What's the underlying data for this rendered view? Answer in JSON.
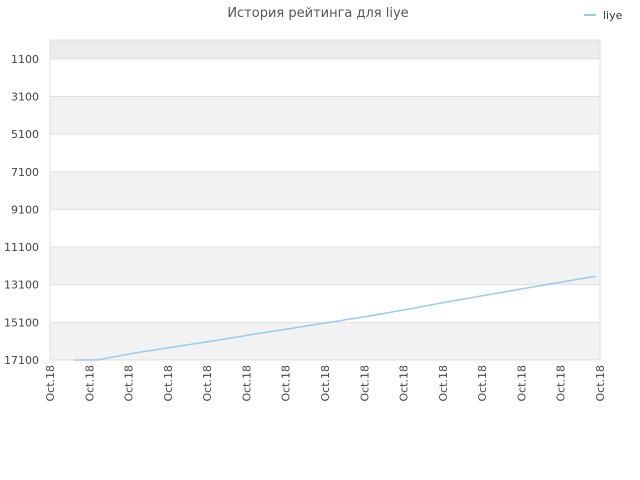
{
  "chart_data": {
    "type": "line",
    "title": "История рейтинга для liye",
    "xlabel": "",
    "ylabel": "",
    "y_reversed": true,
    "ylim": [
      17100,
      100
    ],
    "y_ticks": [
      1100,
      3100,
      5100,
      7100,
      9100,
      11100,
      13100,
      15100,
      17100
    ],
    "x_tick_labels": [
      "Oct.18",
      "Oct.18",
      "Oct.18",
      "Oct.18",
      "Oct.18",
      "Oct.18",
      "Oct.18",
      "Oct.18",
      "Oct.18",
      "Oct.18",
      "Oct.18",
      "Oct.18",
      "Oct.18",
      "Oct.18",
      "Oct.18"
    ],
    "legend": {
      "position": "top-right",
      "entries": [
        "liye"
      ]
    },
    "grid": true,
    "series": [
      {
        "name": "liye",
        "color": "#9ecae9",
        "points": [
          {
            "x": 0.6,
            "y": 17100
          },
          {
            "x": 1.2,
            "y": 17100
          },
          {
            "x": 2.1,
            "y": 16750
          },
          {
            "x": 3.1,
            "y": 16420
          },
          {
            "x": 4.1,
            "y": 16100
          },
          {
            "x": 5.1,
            "y": 15760
          },
          {
            "x": 6.1,
            "y": 15430
          },
          {
            "x": 7.1,
            "y": 15100
          },
          {
            "x": 8.1,
            "y": 14780
          },
          {
            "x": 9.1,
            "y": 14400
          },
          {
            "x": 10.1,
            "y": 14020
          },
          {
            "x": 11.1,
            "y": 13650
          },
          {
            "x": 12.1,
            "y": 13290
          },
          {
            "x": 13.1,
            "y": 12930
          },
          {
            "x": 13.9,
            "y": 12650
          }
        ]
      }
    ]
  }
}
